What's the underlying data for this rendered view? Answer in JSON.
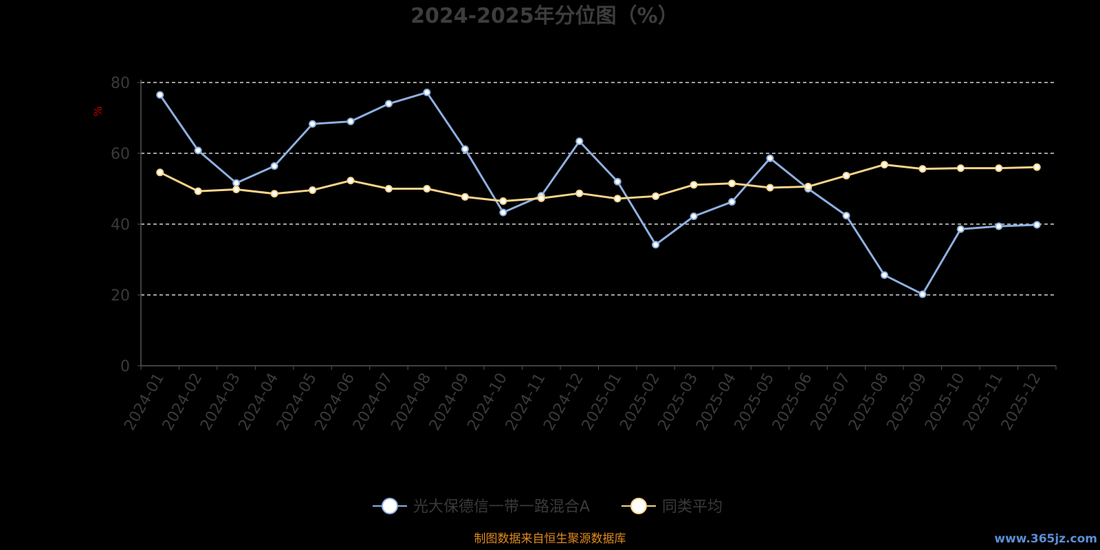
{
  "chart_data": {
    "type": "line",
    "title": "2024-2025年分位图（%）",
    "ylabel": "%",
    "ylim": [
      0,
      80
    ],
    "yticks": [
      0,
      20,
      40,
      60,
      80
    ],
    "grid": true,
    "legend_position": "bottom-center",
    "categories": [
      "2024-01",
      "2024-02",
      "2024-03",
      "2024-04",
      "2024-05",
      "2024-06",
      "2024-07",
      "2024-08",
      "2024-09",
      "2024-10",
      "2024-11",
      "2024-12",
      "2025-01",
      "2025-02",
      "2025-03",
      "2025-04",
      "2025-05",
      "2025-06",
      "2025-07",
      "2025-08",
      "2025-09",
      "2025-10",
      "2025-11",
      "2025-12"
    ],
    "series": [
      {
        "name": "光大保德信一带一路混合A",
        "color": "#8fb0e0",
        "values": [
          76.5,
          60.8,
          51.6,
          56.4,
          68.3,
          69.0,
          74.0,
          77.2,
          61.2,
          43.3,
          48.0,
          63.4,
          52.0,
          34.2,
          42.2,
          46.3,
          58.6,
          50.0,
          42.4,
          25.6,
          20.2,
          38.6,
          39.4,
          39.8
        ]
      },
      {
        "name": "同类平均",
        "color": "#f8d48a",
        "values": [
          54.6,
          49.3,
          49.8,
          48.6,
          49.6,
          52.3,
          50.0,
          50.0,
          47.7,
          46.5,
          47.3,
          48.7,
          47.2,
          47.9,
          51.1,
          51.5,
          50.3,
          50.6,
          53.7,
          56.8,
          55.6,
          55.8,
          55.8,
          56.1
        ]
      }
    ]
  },
  "footer": {
    "source": "制图数据来自恒生聚源数据库",
    "watermark": "www.365jz.com"
  }
}
